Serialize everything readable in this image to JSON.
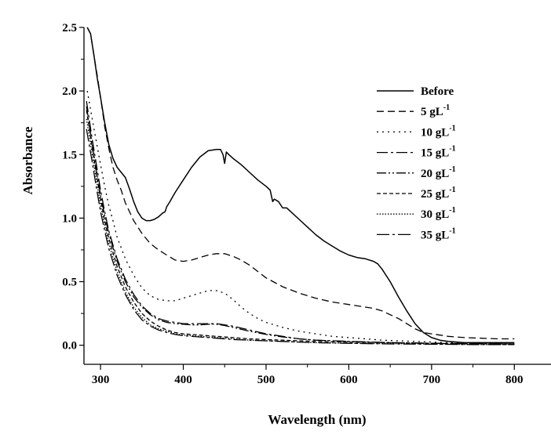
{
  "chart_data": {
    "type": "line",
    "title": "",
    "xlabel": "Wavelength (nm)",
    "ylabel": "Absorbance",
    "xlim": [
      280,
      850
    ],
    "ylim": [
      -0.15,
      2.5
    ],
    "xticks": [
      300,
      400,
      500,
      600,
      700,
      800
    ],
    "yticks": [
      0.0,
      0.5,
      1.0,
      1.5,
      2.0,
      2.5
    ],
    "xtick_labels": [
      "300",
      "400",
      "500",
      "600",
      "700",
      "800"
    ],
    "ytick_labels": [
      "0.0",
      "0.5",
      "1.0",
      "1.5",
      "2.0",
      "2.5"
    ],
    "grid": false,
    "legend_position": "top-right",
    "series": [
      {
        "name": "Before",
        "label_base": "Before",
        "label_sup": "",
        "dash": "solid",
        "x": [
          284,
          288,
          292,
          296,
          300,
          305,
          310,
          315,
          320,
          325,
          330,
          335,
          340,
          345,
          350,
          355,
          360,
          365,
          370,
          375,
          378,
          380,
          383,
          390,
          400,
          410,
          420,
          430,
          440,
          445,
          448,
          450,
          452,
          455,
          460,
          470,
          480,
          490,
          500,
          505,
          508,
          510,
          515,
          520,
          525,
          530,
          540,
          550,
          560,
          570,
          580,
          590,
          600,
          610,
          620,
          630,
          635,
          640,
          650,
          660,
          670,
          680,
          690,
          700,
          710,
          720,
          740,
          760,
          780,
          800
        ],
        "y": [
          2.5,
          2.45,
          2.28,
          2.1,
          1.95,
          1.75,
          1.58,
          1.47,
          1.4,
          1.36,
          1.32,
          1.23,
          1.13,
          1.05,
          1.0,
          0.98,
          0.98,
          0.99,
          1.01,
          1.04,
          1.05,
          1.09,
          1.12,
          1.2,
          1.3,
          1.4,
          1.48,
          1.53,
          1.54,
          1.54,
          1.5,
          1.43,
          1.52,
          1.5,
          1.47,
          1.42,
          1.36,
          1.3,
          1.25,
          1.22,
          1.13,
          1.15,
          1.13,
          1.08,
          1.08,
          1.05,
          0.99,
          0.93,
          0.87,
          0.82,
          0.78,
          0.74,
          0.71,
          0.69,
          0.68,
          0.66,
          0.64,
          0.6,
          0.5,
          0.38,
          0.27,
          0.17,
          0.1,
          0.06,
          0.04,
          0.03,
          0.02,
          0.02,
          0.02,
          0.02
        ]
      },
      {
        "name": "5 gL-1",
        "label_base": "5 gL",
        "label_sup": "-1",
        "dash": "9 5",
        "x": [
          284,
          288,
          292,
          296,
          300,
          305,
          310,
          315,
          320,
          325,
          330,
          340,
          350,
          360,
          370,
          380,
          390,
          400,
          410,
          420,
          430,
          440,
          450,
          460,
          470,
          480,
          490,
          500,
          520,
          540,
          560,
          580,
          600,
          620,
          630,
          640,
          650,
          660,
          670,
          680,
          690,
          700,
          710,
          720,
          740,
          760,
          780,
          800
        ],
        "y": [
          2.5,
          2.45,
          2.28,
          2.12,
          1.95,
          1.72,
          1.55,
          1.4,
          1.3,
          1.22,
          1.12,
          0.98,
          0.88,
          0.8,
          0.75,
          0.71,
          0.67,
          0.66,
          0.67,
          0.69,
          0.71,
          0.72,
          0.72,
          0.7,
          0.67,
          0.63,
          0.58,
          0.53,
          0.46,
          0.41,
          0.37,
          0.34,
          0.32,
          0.3,
          0.29,
          0.27,
          0.24,
          0.21,
          0.17,
          0.13,
          0.1,
          0.09,
          0.08,
          0.07,
          0.06,
          0.055,
          0.05,
          0.05
        ]
      },
      {
        "name": "10 gL-1",
        "label_base": "10 gL",
        "label_sup": "-1",
        "dash": "2 5",
        "x": [
          284,
          290,
          295,
          300,
          305,
          310,
          315,
          320,
          330,
          340,
          350,
          360,
          370,
          380,
          390,
          400,
          410,
          420,
          430,
          440,
          450,
          460,
          470,
          480,
          490,
          500,
          520,
          540,
          560,
          580,
          600,
          620,
          640,
          660,
          680,
          700,
          720,
          740,
          760,
          780,
          800
        ],
        "y": [
          2.0,
          1.78,
          1.6,
          1.42,
          1.25,
          1.1,
          0.98,
          0.85,
          0.68,
          0.55,
          0.45,
          0.39,
          0.36,
          0.35,
          0.35,
          0.37,
          0.39,
          0.41,
          0.43,
          0.43,
          0.41,
          0.36,
          0.3,
          0.25,
          0.21,
          0.18,
          0.14,
          0.11,
          0.09,
          0.07,
          0.06,
          0.05,
          0.04,
          0.035,
          0.03,
          0.025,
          0.02,
          0.02,
          0.02,
          0.02,
          0.02
        ]
      },
      {
        "name": "15 gL-1",
        "label_base": "15 gL",
        "label_sup": "-1",
        "dash": "14 4 3 4",
        "x": [
          283,
          290,
          295,
          300,
          305,
          310,
          320,
          330,
          340,
          350,
          360,
          370,
          380,
          390,
          400,
          410,
          420,
          430,
          440,
          450,
          460,
          480,
          500,
          520,
          540,
          560,
          600,
          650,
          700,
          750,
          800
        ],
        "y": [
          1.92,
          1.62,
          1.42,
          1.22,
          1.05,
          0.9,
          0.68,
          0.52,
          0.4,
          0.31,
          0.25,
          0.21,
          0.19,
          0.18,
          0.17,
          0.17,
          0.17,
          0.17,
          0.17,
          0.16,
          0.15,
          0.12,
          0.09,
          0.07,
          0.05,
          0.04,
          0.03,
          0.02,
          0.015,
          0.012,
          0.01
        ]
      },
      {
        "name": "20 gL-1",
        "label_base": "20 gL",
        "label_sup": "-1",
        "dash": "12 3 2 3 2 3",
        "x": [
          283,
          290,
          295,
          300,
          305,
          310,
          320,
          330,
          340,
          350,
          360,
          370,
          380,
          390,
          400,
          410,
          420,
          430,
          440,
          450,
          460,
          480,
          500,
          520,
          540,
          560,
          600,
          650,
          700,
          750,
          800
        ],
        "y": [
          1.88,
          1.58,
          1.38,
          1.18,
          1.02,
          0.88,
          0.66,
          0.5,
          0.38,
          0.3,
          0.24,
          0.2,
          0.18,
          0.17,
          0.165,
          0.16,
          0.16,
          0.165,
          0.165,
          0.155,
          0.14,
          0.11,
          0.085,
          0.065,
          0.05,
          0.04,
          0.03,
          0.02,
          0.015,
          0.012,
          0.01
        ]
      },
      {
        "name": "25 gL-1",
        "label_base": "25 gL",
        "label_sup": "-1",
        "dash": "5 3",
        "x": [
          283,
          290,
          295,
          300,
          305,
          310,
          320,
          330,
          340,
          350,
          360,
          370,
          380,
          390,
          400,
          420,
          440,
          460,
          480,
          500,
          520,
          540,
          560,
          600,
          650,
          700,
          750,
          800
        ],
        "y": [
          1.85,
          1.55,
          1.35,
          1.15,
          0.98,
          0.84,
          0.62,
          0.46,
          0.34,
          0.25,
          0.19,
          0.15,
          0.12,
          0.1,
          0.09,
          0.08,
          0.07,
          0.06,
          0.05,
          0.045,
          0.04,
          0.035,
          0.03,
          0.025,
          0.02,
          0.015,
          0.01,
          0.01
        ]
      },
      {
        "name": "30 gL-1",
        "label_base": "30 gL",
        "label_sup": "-1",
        "dash": "1.5 2",
        "x": [
          283,
          290,
          295,
          300,
          305,
          310,
          320,
          330,
          340,
          350,
          360,
          370,
          380,
          390,
          400,
          420,
          440,
          460,
          480,
          500,
          520,
          540,
          560,
          600,
          650,
          700,
          750,
          800
        ],
        "y": [
          1.78,
          1.5,
          1.3,
          1.1,
          0.94,
          0.8,
          0.58,
          0.42,
          0.3,
          0.22,
          0.16,
          0.13,
          0.11,
          0.09,
          0.08,
          0.07,
          0.06,
          0.05,
          0.04,
          0.035,
          0.03,
          0.025,
          0.02,
          0.015,
          0.012,
          0.01,
          0.005,
          0.005
        ]
      },
      {
        "name": "35 gL-1",
        "label_base": "35 gL",
        "label_sup": "-1",
        "dash": "16 4 3 4",
        "x": [
          283,
          290,
          295,
          300,
          305,
          310,
          320,
          330,
          340,
          350,
          360,
          370,
          380,
          390,
          400,
          420,
          440,
          460,
          480,
          500,
          520,
          540,
          560,
          600,
          650,
          700,
          750,
          800
        ],
        "y": [
          1.7,
          1.44,
          1.24,
          1.05,
          0.9,
          0.76,
          0.55,
          0.4,
          0.28,
          0.2,
          0.15,
          0.12,
          0.1,
          0.085,
          0.075,
          0.065,
          0.055,
          0.045,
          0.04,
          0.035,
          0.03,
          0.025,
          0.02,
          0.015,
          0.01,
          0.008,
          0.005,
          0.005
        ]
      }
    ]
  }
}
